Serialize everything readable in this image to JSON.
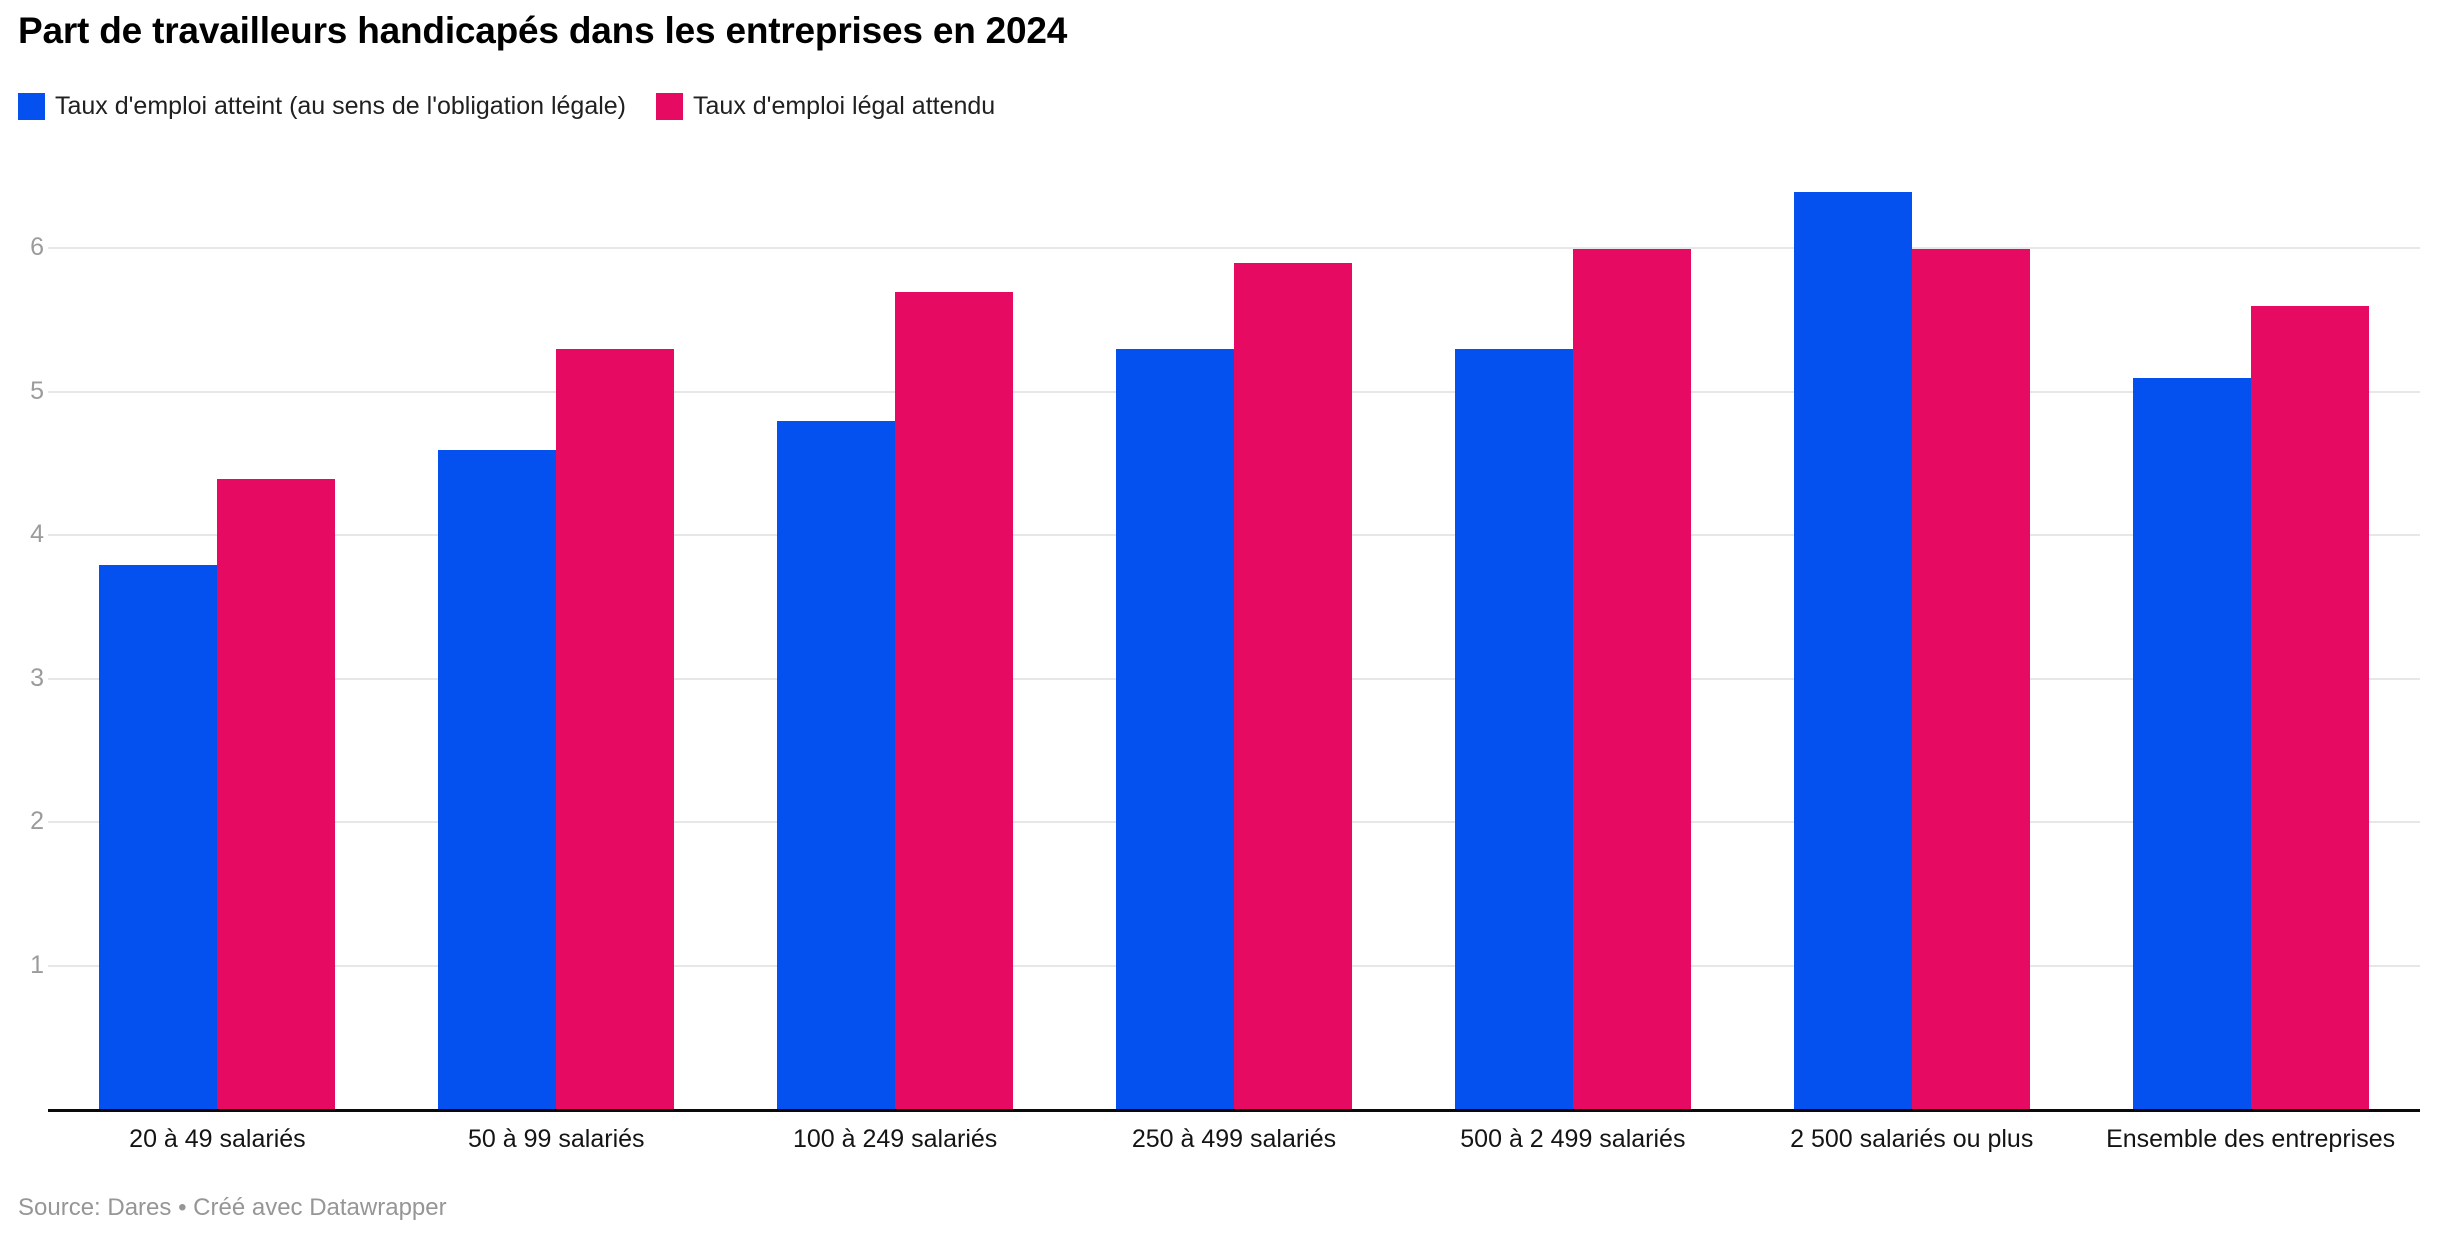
{
  "header": {
    "title": "Part de travailleurs handicapés dans les entreprises en 2024"
  },
  "legend": {
    "items": [
      {
        "label": "Taux d'emploi atteint (au sens de l'obligation légale)",
        "color": "#0551f0"
      },
      {
        "label": "Taux d'emploi légal attendu",
        "color": "#e60a63"
      }
    ]
  },
  "chart_data": {
    "type": "bar",
    "title": "Part de travailleurs handicapés dans les entreprises en 2024",
    "categories": [
      "20 à 49 salariés",
      "50 à 99 salariés",
      "100 à 249 salariés",
      "250 à 499 salariés",
      "500 à 2 499 salariés",
      "2 500 salariés ou plus",
      "Ensemble des entreprises"
    ],
    "series": [
      {
        "name": "Taux d'emploi atteint (au sens de l'obligation légale)",
        "color": "#0551f0",
        "values": [
          3.8,
          4.6,
          4.8,
          5.3,
          5.3,
          6.4,
          5.1
        ]
      },
      {
        "name": "Taux d'emploi légal attendu",
        "color": "#e60a63",
        "values": [
          4.4,
          5.3,
          5.7,
          5.9,
          6.0,
          6.0,
          5.6
        ]
      }
    ],
    "xlabel": "",
    "ylabel": "",
    "yticks": [
      1,
      2,
      3,
      4,
      5,
      6
    ],
    "ylim": [
      0,
      6.41
    ],
    "grid": "horizontal",
    "legend_position": "top-left"
  },
  "footer": {
    "source_text": "Source: Dares",
    "separator": " • ",
    "attribution": "Créé avec Datawrapper"
  },
  "colors": {
    "series_achieved": "#0551f0",
    "series_expected": "#e60a63",
    "gridline": "#e7e7e7",
    "axis": "#0a0a0a",
    "tick_text": "#9b9b9b",
    "label_text": "#141414",
    "footer_text": "#969696"
  }
}
